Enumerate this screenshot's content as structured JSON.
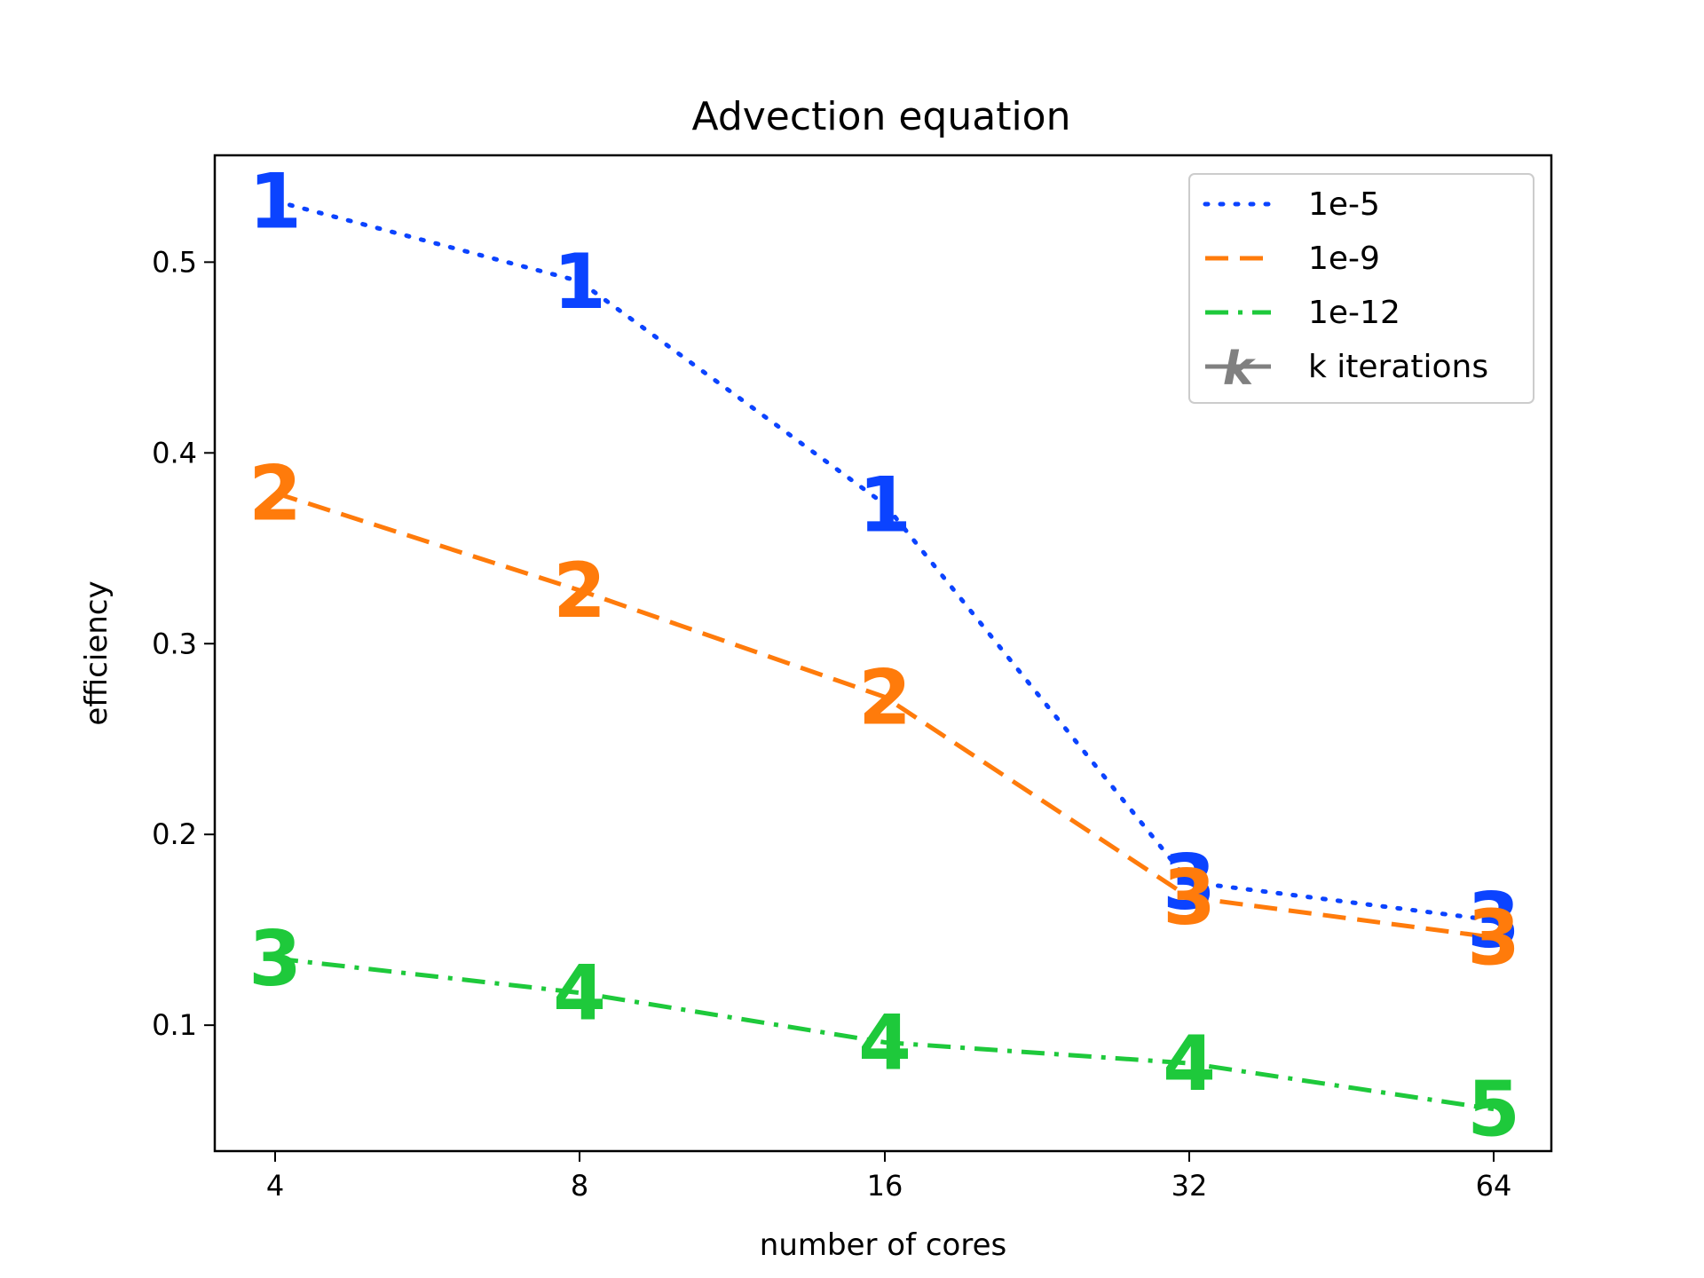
{
  "chart_data": {
    "type": "line",
    "title": "Advection equation",
    "xlabel": "number of cores",
    "ylabel": "efficiency",
    "x_categories": [
      "4",
      "8",
      "16",
      "32",
      "64"
    ],
    "y_ticks": [
      "0.1",
      "0.2",
      "0.3",
      "0.4",
      "0.5"
    ],
    "ylim": [
      0.034,
      0.556
    ],
    "grid": false,
    "legend_position": "top-right",
    "series": [
      {
        "name": "1e-5",
        "color": "#0b43ff",
        "linestyle": "dotted",
        "values": [
          0.532,
          0.49,
          0.373,
          0.175,
          0.155
        ],
        "labels": [
          "1",
          "1",
          "1",
          "3",
          "3"
        ]
      },
      {
        "name": "1e-9",
        "color": "#ff7b0b",
        "linestyle": "dashed",
        "values": [
          0.379,
          0.328,
          0.272,
          0.167,
          0.146
        ],
        "labels": [
          "2",
          "2",
          "2",
          "3",
          "3"
        ]
      },
      {
        "name": "1e-12",
        "color": "#1ec93b",
        "linestyle": "dashdot",
        "values": [
          0.135,
          0.117,
          0.091,
          0.08,
          0.056
        ],
        "labels": [
          "3",
          "4",
          "4",
          "4",
          "5"
        ]
      }
    ],
    "legend_extra": {
      "label": "k iterations",
      "color": "#808080",
      "symbol": "k"
    }
  }
}
